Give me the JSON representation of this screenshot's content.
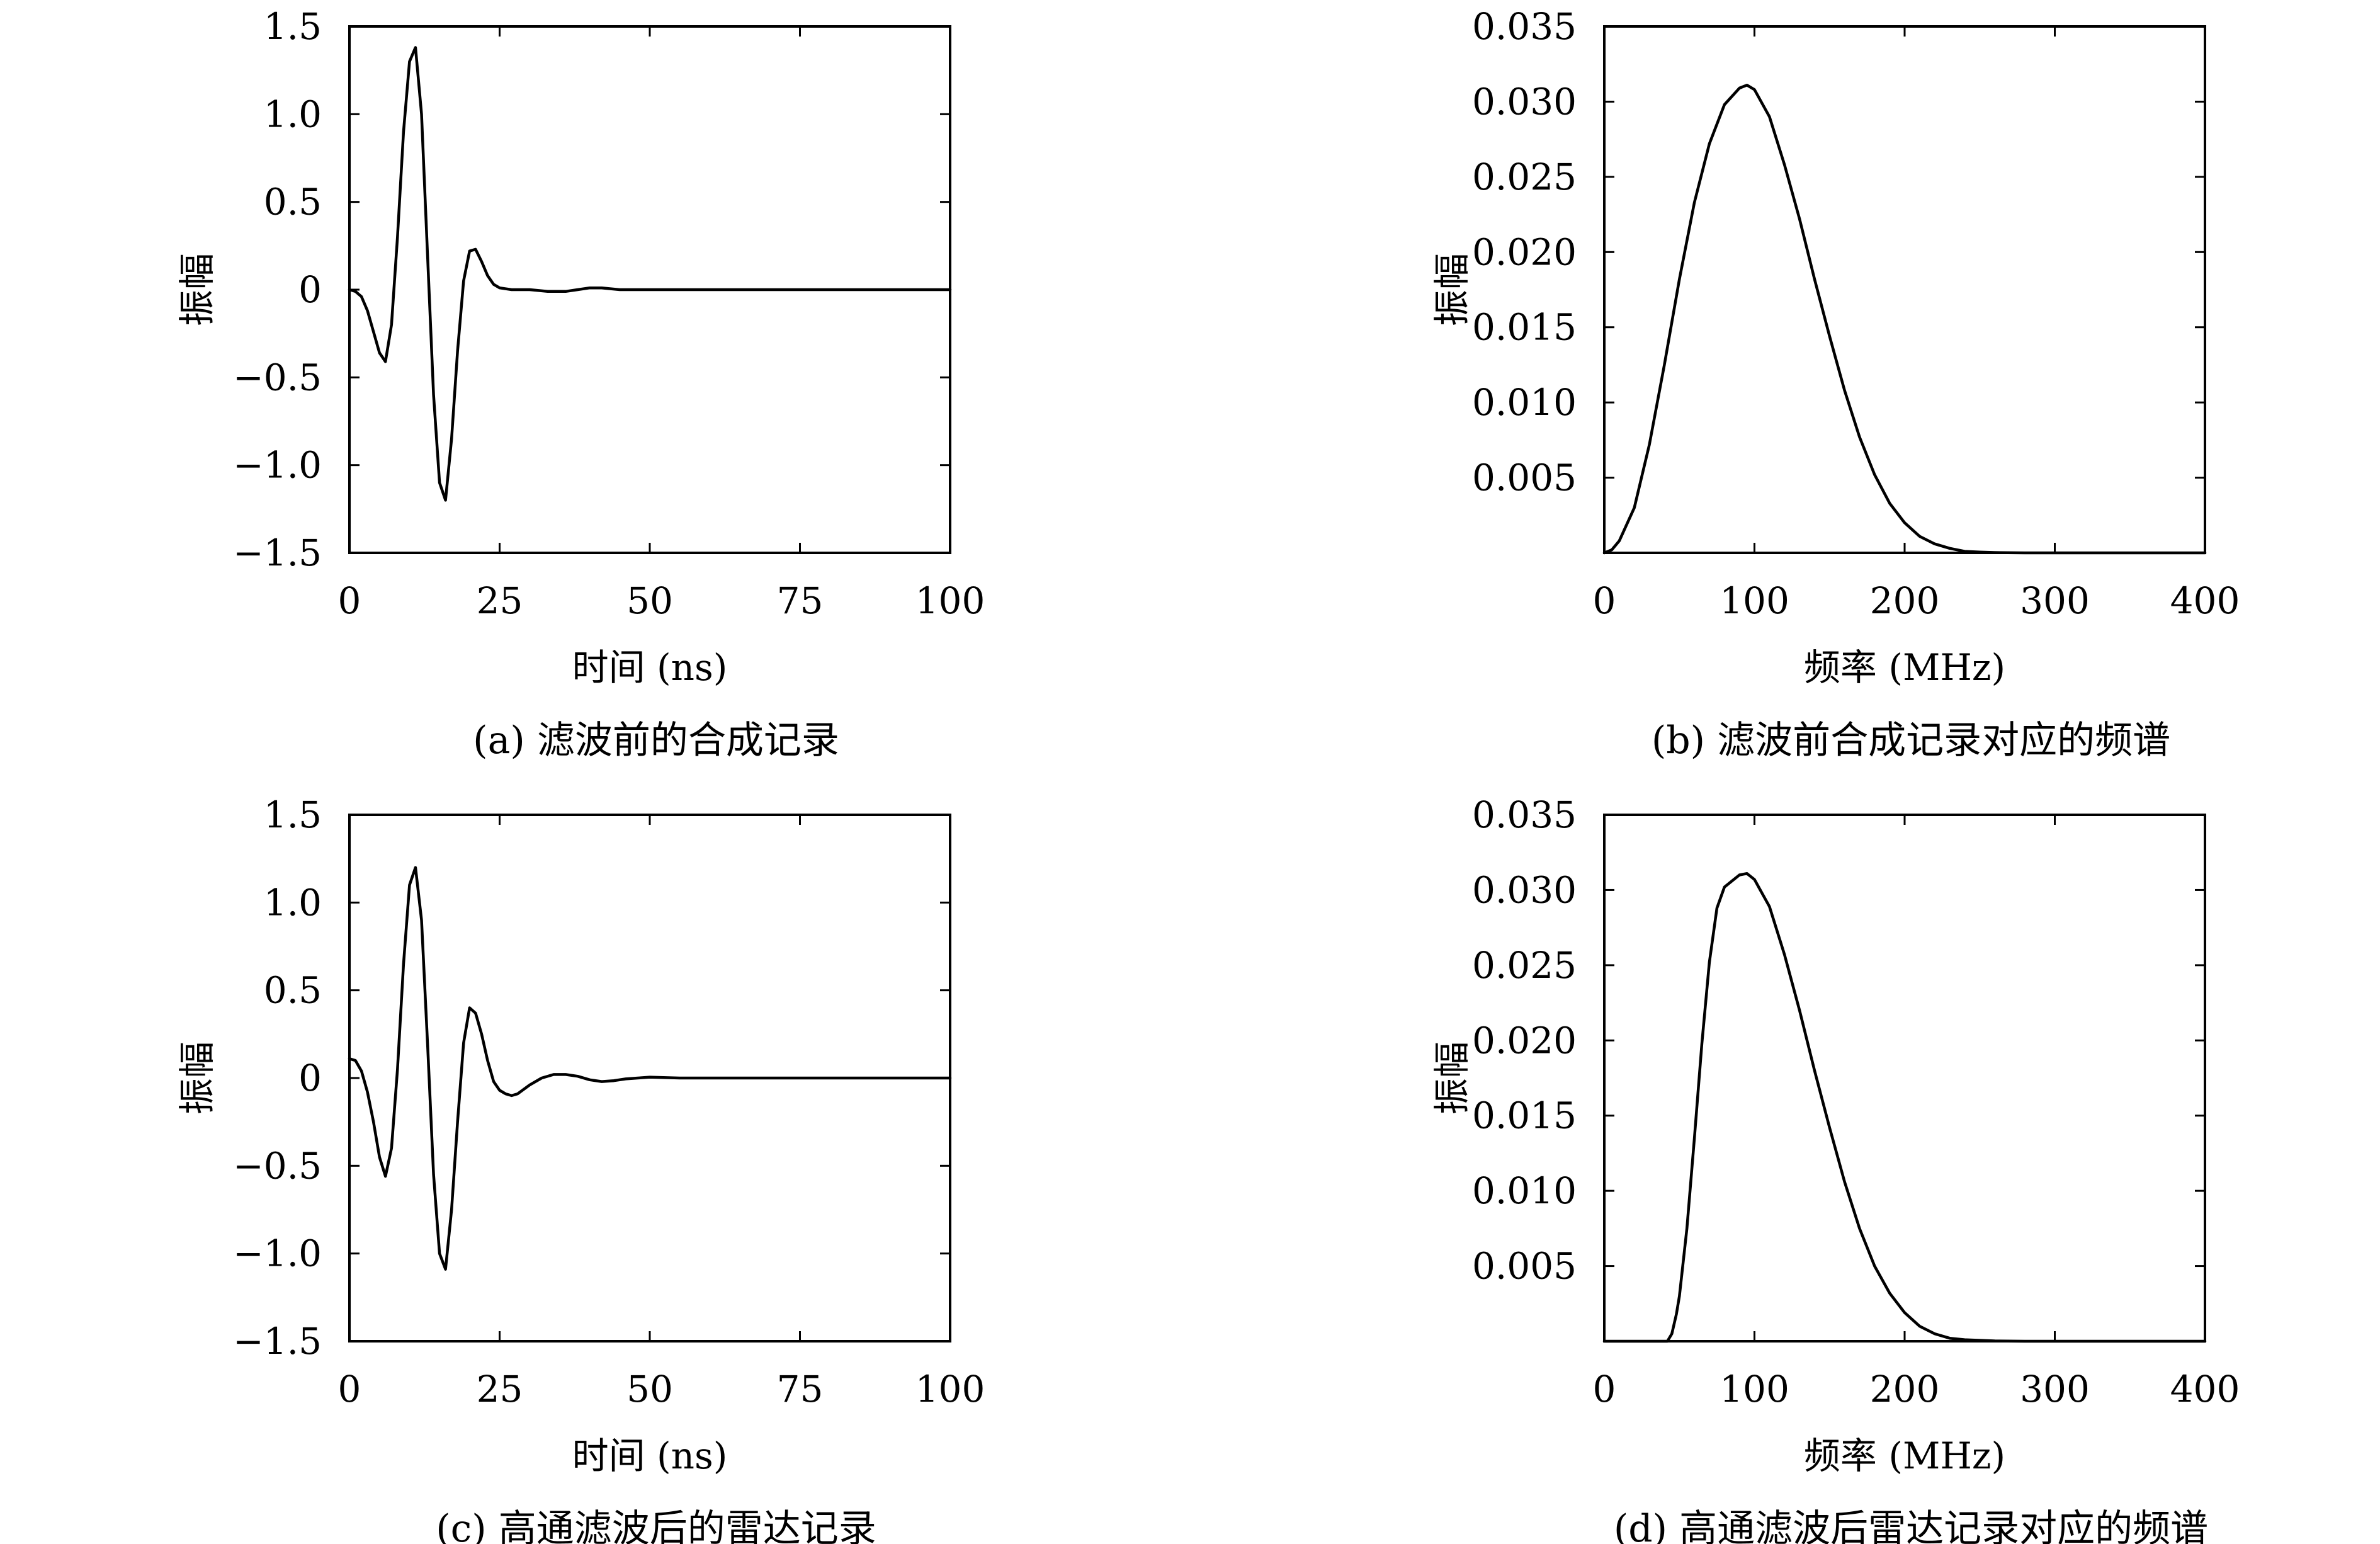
{
  "chart_data": [
    {
      "id": "a",
      "type": "line",
      "caption": "(a) 滤波前的合成记录",
      "xlabel": "时间 (ns)",
      "ylabel": "振幅",
      "xlim": [
        0,
        100
      ],
      "ylim": [
        -1.5,
        1.5
      ],
      "xticks": [
        0,
        25,
        50,
        75,
        100
      ],
      "xtick_labels": [
        "0",
        "25",
        "50",
        "75",
        "100"
      ],
      "yticks": [
        1.5,
        1.0,
        0.5,
        0,
        -0.5,
        -1.0,
        -1.5
      ],
      "ytick_labels": [
        "1.5",
        "1.0",
        "0.5",
        "0",
        "−0.5",
        "−1.0",
        "−1.5"
      ],
      "grid": false,
      "series": [
        {
          "x": [
            0,
            1,
            2,
            3,
            4,
            5,
            6,
            7,
            8,
            9,
            10,
            11,
            12,
            13,
            14,
            15,
            16,
            17,
            18,
            19,
            20,
            21,
            22,
            23,
            24,
            25,
            27,
            30,
            33,
            36,
            38,
            40,
            42,
            45,
            50,
            60,
            70,
            80,
            90,
            100
          ],
          "y": [
            0,
            -0.01,
            -0.04,
            -0.12,
            -0.24,
            -0.36,
            -0.41,
            -0.2,
            0.3,
            0.9,
            1.3,
            1.38,
            1.0,
            0.2,
            -0.6,
            -1.1,
            -1.2,
            -0.85,
            -0.35,
            0.05,
            0.22,
            0.23,
            0.16,
            0.08,
            0.03,
            0.01,
            0.0,
            0.0,
            -0.01,
            -0.01,
            0.0,
            0.01,
            0.01,
            0.0,
            0.0,
            0.0,
            0.0,
            0.0,
            0.0,
            0.0
          ]
        }
      ]
    },
    {
      "id": "b",
      "type": "line",
      "caption": "(b) 滤波前合成记录对应的频谱",
      "xlabel": "频率 (MHz)",
      "ylabel": "振幅",
      "xlim": [
        0,
        400
      ],
      "ylim": [
        0,
        0.035
      ],
      "xticks": [
        0,
        100,
        200,
        300,
        400
      ],
      "xtick_labels": [
        "0",
        "100",
        "200",
        "300",
        "400"
      ],
      "yticks": [
        0.035,
        0.03,
        0.025,
        0.02,
        0.015,
        0.01,
        0.005
      ],
      "ytick_labels": [
        "0.035",
        "0.030",
        "0.025",
        "0.020",
        "0.015",
        "0.010",
        "0.005"
      ],
      "grid": false,
      "series": [
        {
          "x": [
            0,
            5,
            10,
            20,
            30,
            40,
            50,
            60,
            70,
            80,
            90,
            95,
            100,
            110,
            120,
            130,
            140,
            150,
            160,
            170,
            180,
            190,
            200,
            210,
            220,
            230,
            240,
            250,
            260,
            280,
            300,
            350,
            400
          ],
          "y": [
            0,
            0.0002,
            0.0008,
            0.003,
            0.0072,
            0.0125,
            0.0182,
            0.0233,
            0.0272,
            0.0298,
            0.0309,
            0.0311,
            0.0308,
            0.029,
            0.0258,
            0.0222,
            0.0182,
            0.0144,
            0.0108,
            0.0077,
            0.0052,
            0.0033,
            0.002,
            0.0011,
            0.0006,
            0.0003,
            0.0001,
            5e-05,
            2e-05,
            0,
            0,
            0,
            0
          ]
        }
      ]
    },
    {
      "id": "c",
      "type": "line",
      "caption": "(c) 高通滤波后的雷达记录",
      "xlabel": "时间 (ns)",
      "ylabel": "振幅",
      "xlim": [
        0,
        100
      ],
      "ylim": [
        -1.5,
        1.5
      ],
      "xticks": [
        0,
        25,
        50,
        75,
        100
      ],
      "xtick_labels": [
        "0",
        "25",
        "50",
        "75",
        "100"
      ],
      "yticks": [
        1.5,
        1.0,
        0.5,
        0,
        -0.5,
        -1.0,
        -1.5
      ],
      "ytick_labels": [
        "1.5",
        "1.0",
        "0.5",
        "0",
        "−0.5",
        "−1.0",
        "−1.5"
      ],
      "grid": false,
      "series": [
        {
          "x": [
            0,
            1,
            2,
            3,
            4,
            5,
            6,
            7,
            8,
            9,
            10,
            11,
            12,
            13,
            14,
            15,
            16,
            17,
            18,
            19,
            20,
            21,
            22,
            23,
            24,
            25,
            26,
            27,
            28,
            30,
            32,
            34,
            36,
            38,
            40,
            42,
            44,
            46,
            48,
            50,
            55,
            60,
            70,
            80,
            90,
            100
          ],
          "y": [
            0.11,
            0.1,
            0.04,
            -0.08,
            -0.25,
            -0.45,
            -0.56,
            -0.4,
            0.05,
            0.65,
            1.1,
            1.2,
            0.9,
            0.2,
            -0.55,
            -1.0,
            -1.09,
            -0.75,
            -0.25,
            0.2,
            0.4,
            0.37,
            0.25,
            0.1,
            -0.02,
            -0.07,
            -0.09,
            -0.1,
            -0.09,
            -0.04,
            0.0,
            0.02,
            0.02,
            0.01,
            -0.01,
            -0.02,
            -0.015,
            -0.005,
            0.0,
            0.005,
            0.0,
            0.0,
            0.0,
            0.0,
            0.0,
            0.0
          ]
        }
      ]
    },
    {
      "id": "d",
      "type": "line",
      "caption": "(d) 高通滤波后雷达记录对应的频谱",
      "xlabel": "频率 (MHz)",
      "ylabel": "振幅",
      "xlim": [
        0,
        400
      ],
      "ylim": [
        0,
        0.035
      ],
      "xticks": [
        0,
        100,
        200,
        300,
        400
      ],
      "xtick_labels": [
        "0",
        "100",
        "200",
        "300",
        "400"
      ],
      "yticks": [
        0.035,
        0.03,
        0.025,
        0.02,
        0.015,
        0.01,
        0.005
      ],
      "ytick_labels": [
        "0.035",
        "0.030",
        "0.025",
        "0.020",
        "0.015",
        "0.010",
        "0.005"
      ],
      "grid": false,
      "series": [
        {
          "x": [
            0,
            20,
            40,
            42,
            45,
            48,
            50,
            55,
            60,
            65,
            70,
            75,
            80,
            85,
            90,
            95,
            100,
            110,
            120,
            130,
            140,
            150,
            160,
            170,
            180,
            190,
            200,
            210,
            220,
            230,
            240,
            260,
            280,
            300,
            350,
            400
          ],
          "y": [
            0,
            0,
            0,
            0,
            0.0005,
            0.0018,
            0.003,
            0.0075,
            0.0135,
            0.0198,
            0.0252,
            0.0288,
            0.0302,
            0.0306,
            0.031,
            0.0311,
            0.0307,
            0.0289,
            0.0257,
            0.022,
            0.018,
            0.0142,
            0.0106,
            0.0075,
            0.005,
            0.0032,
            0.0019,
            0.001,
            0.0005,
            0.0002,
            0.0001,
            2e-05,
            0,
            0,
            0,
            0
          ]
        }
      ]
    }
  ]
}
